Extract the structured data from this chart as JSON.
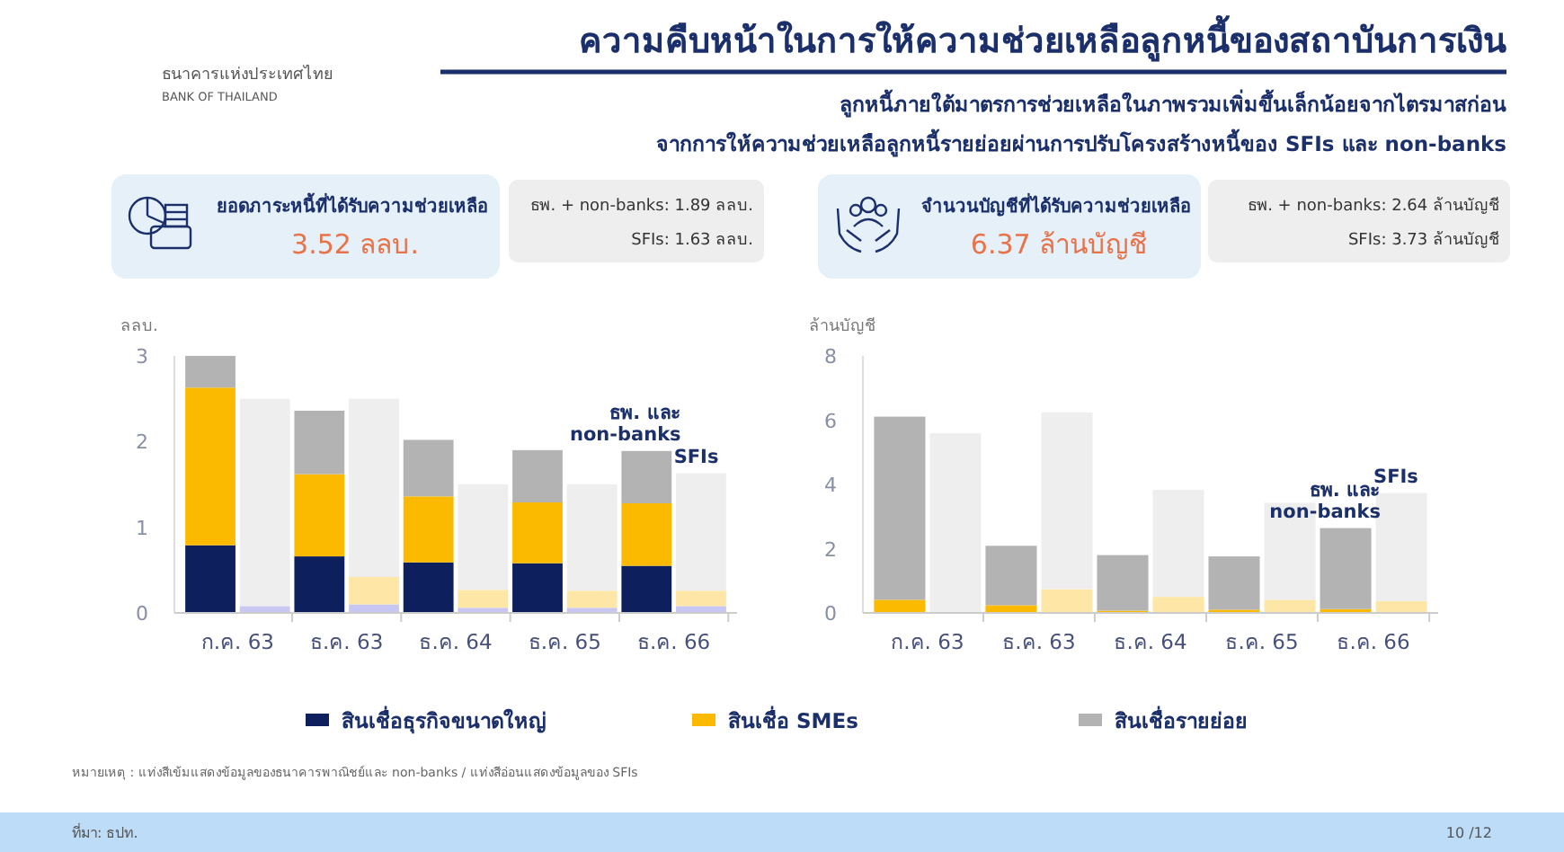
{
  "chart_data": [
    {
      "type": "other",
      "title": "ความคืบหน้าในการให้ความช่วยเหลือลูกหนี้ของสถาบันการเงิน",
      "subtitle": "ลูกหนี้ภายใต้มาตรการช่วยเหลือในภาพรวมเพิ่มขึ้นเล็กน้อยจากไตรมาสก่อน\nจากการให้ความช่วยเหลือลูกหนี้รายย่อยผ่านการปรับโครงสร้างหนี้ของ SFIs และ non-banks",
      "annotations": [
        "ธนาคารแห่งประเทศไทย",
        "BANK OF THAILAND",
        "หมายเหตุ : แท่งสีเข้มแสดงข้อมูลของธนาคารพาณิชย์และ non-banks / แท่งสีอ่อนแสดงข้อมูลของ SFIs",
        "ที่มา: ธปท.",
        "10 /12"
      ]
    },
    {
      "type": "bar",
      "stacked": true,
      "title": "ยอดภาระหนี้ที่ได้รับความช่วยเหลือ",
      "subtitle": "3.52 ลลบ.",
      "ylabel": "ลลบ.",
      "categories": [
        "ก.ค. 63",
        null,
        "ธ.ค. 63",
        null,
        "ธ.ค. 64",
        null,
        "ธ.ค. 65",
        null,
        "ธ.ค. 66",
        null
      ],
      "ylim": [
        0,
        3
      ],
      "yticks": [
        0,
        1,
        2,
        3
      ],
      "legend": "bottom",
      "series": [
        {
          "name": "สินเชื่อธุรกิจขนาดใหญ่",
          "color": "#0d1f5c",
          "colors": [
            "#0d1f5c",
            "#c8c6f2",
            "#0d1f5c",
            "#c8c6f2",
            "#0d1f5c",
            "#c8c6f2",
            "#0d1f5c",
            "#c8c6f2",
            "#0d1f5c",
            "#c8c6f2"
          ],
          "values": [
            0.79,
            0.08,
            0.66,
            0.1,
            0.59,
            0.06,
            0.58,
            0.06,
            0.55,
            0.08
          ]
        },
        {
          "name": "สินเชื่อ SMEs",
          "color": "#fbb900",
          "colors": [
            "#fbb900",
            null,
            "#fbb900",
            "#fde6a6",
            "#fbb900",
            "#fde6a6",
            "#fbb900",
            "#fde6a6",
            "#fbb900",
            "#fde6a6"
          ],
          "values": [
            1.84,
            null,
            0.96,
            0.32,
            0.77,
            0.21,
            0.71,
            0.2,
            0.73,
            0.18
          ]
        },
        {
          "name": "สินเชื่อรายย่อย",
          "color": "#b3b3b3",
          "colors": [
            "#b3b3b3",
            "#eeeeee",
            "#b3b3b3",
            "#eeeeee",
            "#b3b3b3",
            "#eeeeee",
            "#b3b3b3",
            "#eeeeee",
            "#b3b3b3",
            "#eeeeee"
          ],
          "values": [
            0.37,
            2.42,
            0.74,
            2.08,
            0.66,
            1.23,
            0.61,
            1.24,
            0.61,
            1.37
          ]
        }
      ],
      "annotations": [
        "ธพ. + non-banks: 1.89 ลลบ.",
        "SFIs: 1.63 ลลบ.",
        "ธพ. และ\nnon-banks",
        "SFIs"
      ]
    },
    {
      "type": "bar",
      "stacked": true,
      "title": "จำนวนบัญชีที่ได้รับความช่วยเหลือ",
      "subtitle": "6.37 ล้านบัญชี",
      "ylabel": "ล้านบัญชี",
      "categories": [
        "ก.ค. 63",
        null,
        "ธ.ค. 63",
        null,
        "ธ.ค. 64",
        null,
        "ธ.ค. 65",
        null,
        "ธ.ค. 66",
        null
      ],
      "ylim": [
        0,
        8
      ],
      "yticks": [
        0,
        2,
        4,
        6,
        8
      ],
      "series": [
        {
          "colors": [
            "#0d1f5c",
            "#c8c6f2",
            "#0d1f5c",
            "#c8c6f2",
            "#0d1f5c",
            "#c8c6f2",
            "#0d1f5c",
            "#c8c6f2",
            "#0d1f5c",
            "#c8c6f2"
          ],
          "values": [
            0,
            0,
            0,
            0,
            0,
            0,
            0,
            0,
            0,
            0
          ]
        },
        {
          "colors": [
            "#fbb900",
            "#fde6a6",
            "#fbb900",
            "#fde6a6",
            "#fbb900",
            "#fde6a6",
            "#fbb900",
            "#fde6a6",
            "#fbb900",
            "#fde6a6"
          ],
          "values": [
            0.41,
            0,
            0.24,
            0.74,
            0.07,
            0.5,
            0.1,
            0.41,
            0.12,
            0.37
          ]
        },
        {
          "colors": [
            "#b3b3b3",
            "#eeeeee",
            "#b3b3b3",
            "#eeeeee",
            "#b3b3b3",
            "#eeeeee",
            "#b3b3b3",
            "#eeeeee",
            "#b3b3b3",
            "#eeeeee"
          ],
          "values": [
            5.7,
            5.59,
            1.85,
            5.5,
            1.73,
            3.33,
            1.66,
            3.02,
            2.52,
            3.36
          ]
        }
      ],
      "annotations": [
        "ธพ. + non-banks: 2.64 ล้านบัญชี",
        "SFIs: 3.73 ล้านบัญชี",
        "ธพ. และ\nnon-banks",
        "SFIs"
      ]
    }
  ]
}
